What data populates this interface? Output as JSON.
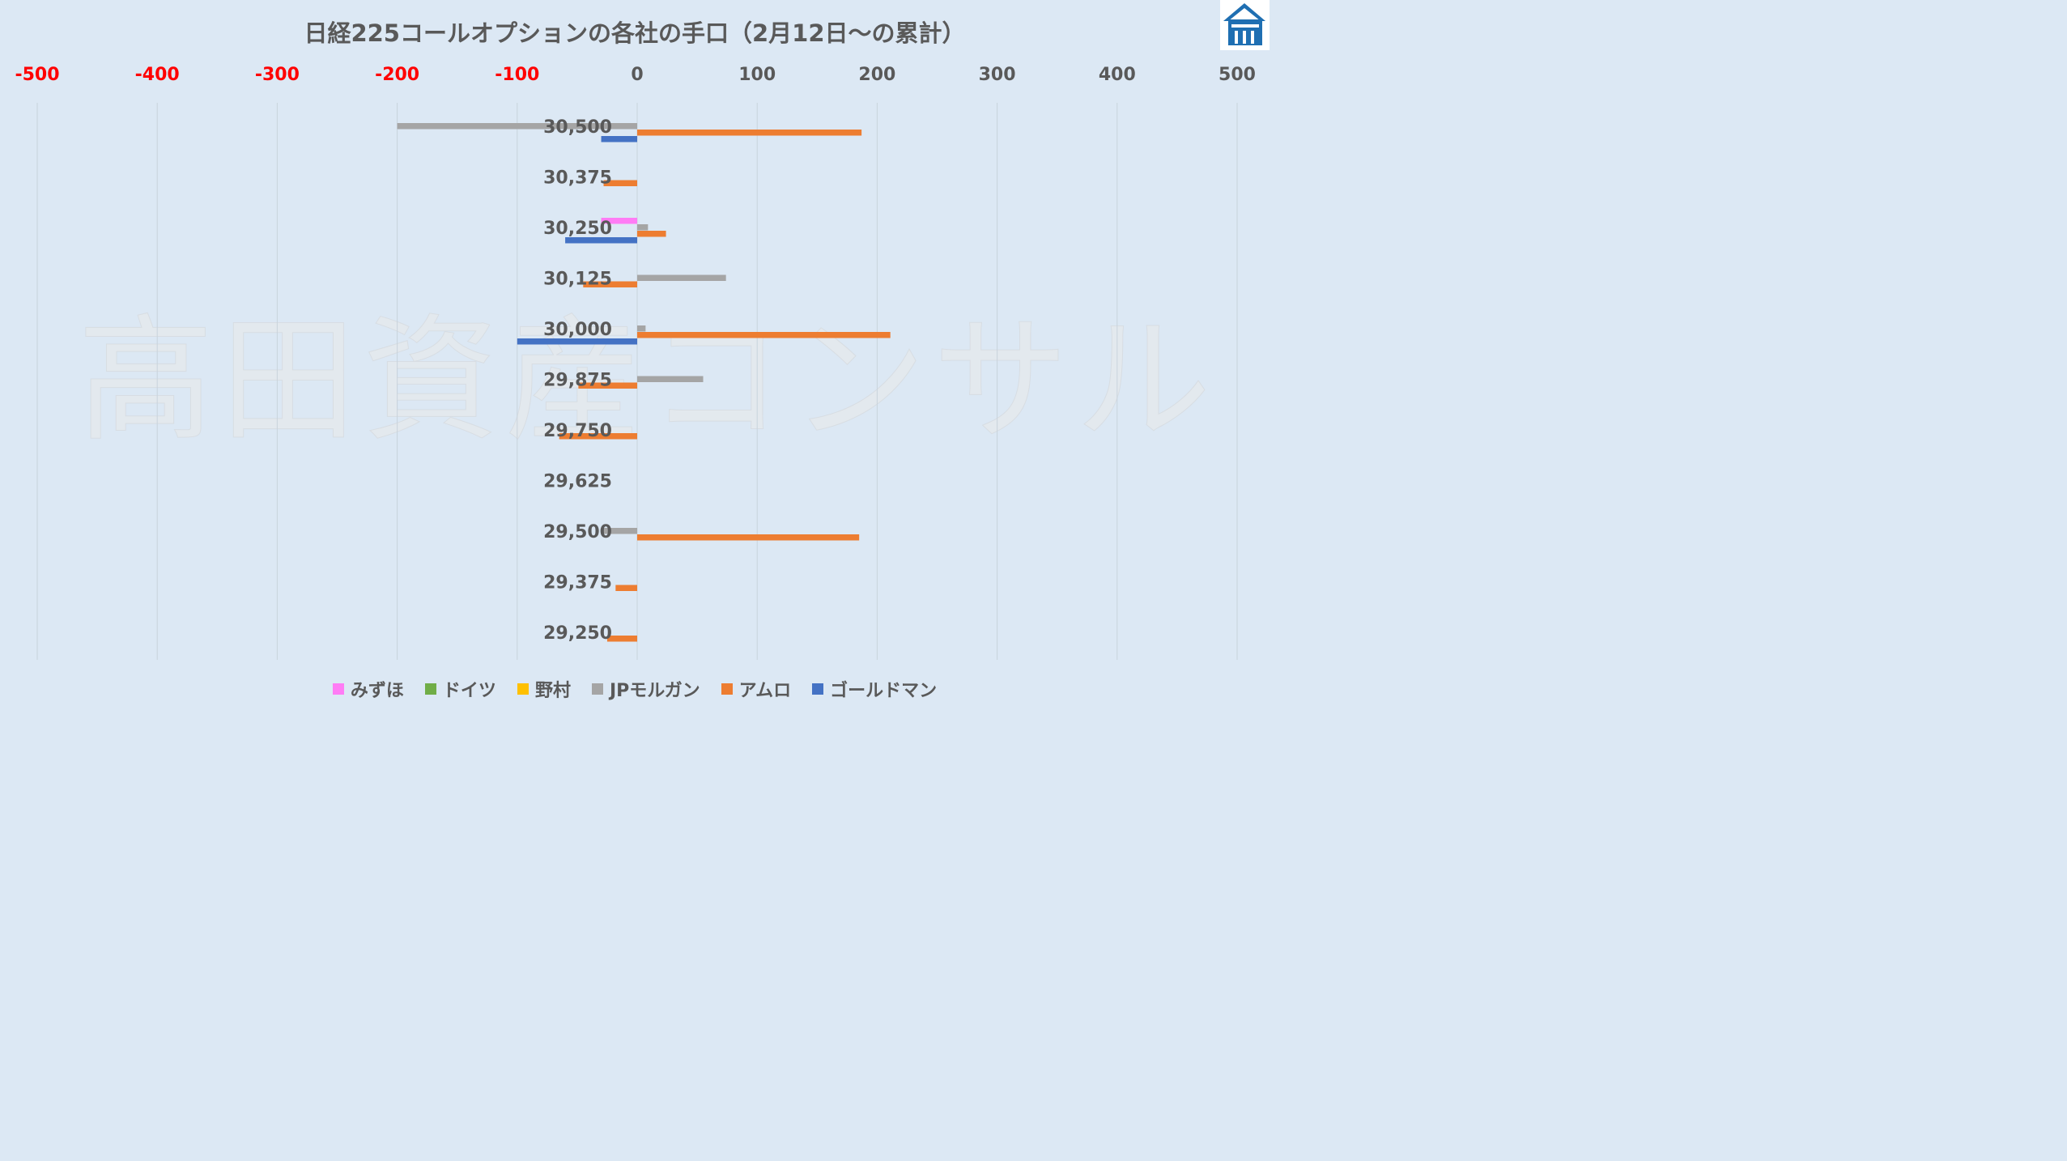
{
  "chart_data": {
    "type": "bar",
    "orientation": "horizontal",
    "title": "日経225コールオプションの各社の手口（2月12日～の累計）",
    "watermark": "高田資産コンサル",
    "categories": [
      "30,500",
      "30,375",
      "30,250",
      "30,125",
      "30,000",
      "29,875",
      "29,750",
      "29,625",
      "29,500",
      "29,375",
      "29,250"
    ],
    "xlim": [
      -500,
      500
    ],
    "xticks": [
      {
        "label": "-500",
        "value": -500
      },
      {
        "label": "-400",
        "value": -400
      },
      {
        "label": "-300",
        "value": -300
      },
      {
        "label": "-200",
        "value": -200
      },
      {
        "label": "-100",
        "value": -100
      },
      {
        "label": "0",
        "value": 0
      },
      {
        "label": "100",
        "value": 100
      },
      {
        "label": "200",
        "value": 200
      },
      {
        "label": "300",
        "value": 300
      },
      {
        "label": "400",
        "value": 400
      },
      {
        "label": "500",
        "value": 500
      }
    ],
    "negative_tick_color": "#ff0000",
    "positive_tick_color": "#595959",
    "grid": true,
    "legend_position": "bottom",
    "series": [
      {
        "name": "みずほ",
        "color": "#ff7cf5",
        "values": [
          0,
          0,
          -30,
          0,
          0,
          0,
          0,
          0,
          0,
          0,
          0
        ]
      },
      {
        "name": "ドイツ",
        "color": "#70ad47",
        "values": [
          0,
          0,
          0,
          0,
          0,
          0,
          0,
          0,
          0,
          0,
          0
        ]
      },
      {
        "name": "野村",
        "color": "#ffc000",
        "values": [
          0,
          0,
          0,
          0,
          0,
          0,
          0,
          0,
          0,
          0,
          0
        ]
      },
      {
        "name": "JPモルガン",
        "color": "#a5a5a5",
        "values": [
          -200,
          0,
          9,
          74,
          7,
          55,
          0,
          0,
          -30,
          0,
          0
        ]
      },
      {
        "name": "アムロ",
        "color": "#ed7d31",
        "values": [
          187,
          -28,
          24,
          -45,
          211,
          -49,
          -65,
          0,
          185,
          -18,
          -25
        ]
      },
      {
        "name": "ゴールドマン",
        "color": "#4472c4",
        "values": [
          -30,
          0,
          -60,
          0,
          -100,
          0,
          0,
          0,
          0,
          0,
          0
        ]
      }
    ]
  }
}
